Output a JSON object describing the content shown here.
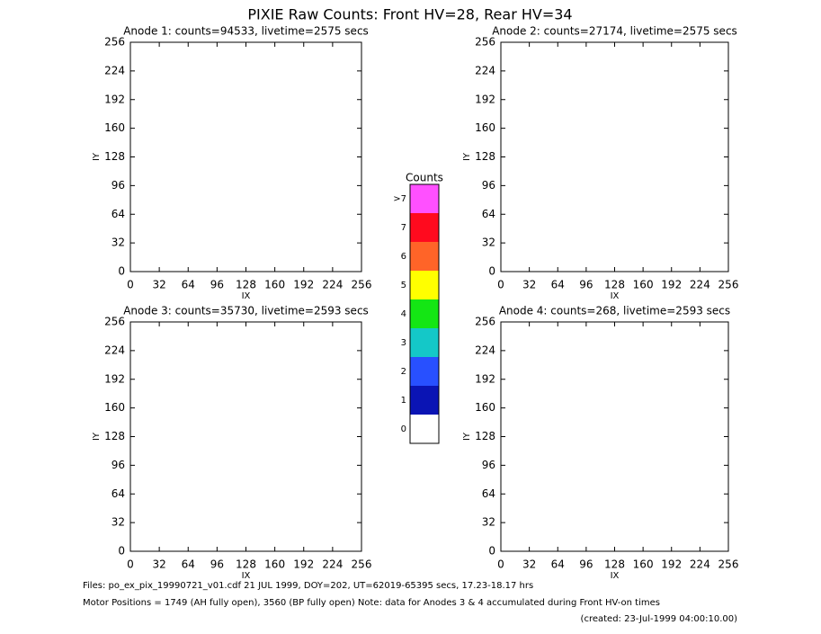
{
  "title": "PIXIE Raw Counts:  Front HV=28, Rear HV=34",
  "chart_data": [
    {
      "type": "heatmap",
      "title": "Anode 1: counts=94533, livetime=2575 secs",
      "x_label": "IX",
      "y_label": "IY",
      "xlim": [
        0,
        256
      ],
      "ylim": [
        0,
        256
      ],
      "xticks": [
        0,
        32,
        64,
        96,
        128,
        160,
        192,
        224,
        256
      ],
      "yticks": [
        0,
        32,
        64,
        96,
        128,
        160,
        192,
        224,
        256
      ]
    },
    {
      "type": "heatmap",
      "title": "Anode 2: counts=27174, livetime=2575 secs",
      "x_label": "IX",
      "y_label": "IY",
      "xlim": [
        0,
        256
      ],
      "ylim": [
        0,
        256
      ],
      "xticks": [
        0,
        32,
        64,
        96,
        128,
        160,
        192,
        224,
        256
      ],
      "yticks": [
        0,
        32,
        64,
        96,
        128,
        160,
        192,
        224,
        256
      ]
    },
    {
      "type": "heatmap",
      "title": "Anode 3: counts=35730, livetime=2593 secs",
      "x_label": "IX",
      "y_label": "IY",
      "xlim": [
        0,
        256
      ],
      "ylim": [
        0,
        256
      ],
      "xticks": [
        0,
        32,
        64,
        96,
        128,
        160,
        192,
        224,
        256
      ],
      "yticks": [
        0,
        32,
        64,
        96,
        128,
        160,
        192,
        224,
        256
      ]
    },
    {
      "type": "heatmap",
      "title": "Anode 4: counts=268, livetime=2593 secs",
      "x_label": "IX",
      "y_label": "IY",
      "xlim": [
        0,
        256
      ],
      "ylim": [
        0,
        256
      ],
      "xticks": [
        0,
        32,
        64,
        96,
        128,
        160,
        192,
        224,
        256
      ],
      "yticks": [
        0,
        32,
        64,
        96,
        128,
        160,
        192,
        224,
        256
      ]
    }
  ],
  "colorbar": {
    "title": "Counts",
    "labels": [
      "0",
      "1",
      "2",
      "3",
      "4",
      "5",
      "6",
      "7",
      ">7"
    ],
    "colors": [
      "#ffffff",
      "#0a14b4",
      "#2850ff",
      "#14c8c8",
      "#14e614",
      "#ffff00",
      "#ff6428",
      "#ff0a1e",
      "#ff50ff"
    ]
  },
  "footer": [
    "Files: po_ex_pix_19990721_v01.cdf    21 JUL 1999, DOY=202, UT=62019-65395 secs, 17.23-18.17 hrs",
    "Motor Positions = 1749 (AH fully open), 3560 (BP fully open)    Note: data for Anodes 3 & 4 accumulated during Front HV-on times",
    "(created: 23-Jul-1999 04:00:10.00)"
  ]
}
